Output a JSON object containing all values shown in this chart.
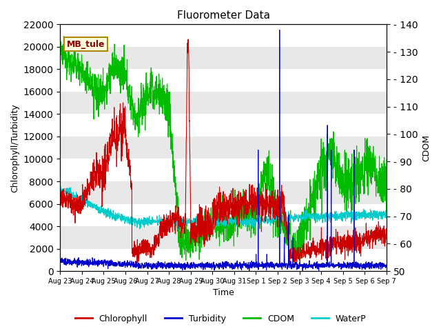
{
  "title": "Fluorometer Data",
  "xlabel": "Time",
  "ylabel_left": "Chlorophyll/Turbidity",
  "ylabel_right": "CDOM",
  "ylim_left": [
    0,
    22000
  ],
  "ylim_right": [
    50,
    140
  ],
  "yticks_left": [
    0,
    2000,
    4000,
    6000,
    8000,
    10000,
    12000,
    14000,
    16000,
    18000,
    20000,
    22000
  ],
  "yticks_right": [
    50,
    60,
    70,
    80,
    90,
    100,
    110,
    120,
    130,
    140
  ],
  "annotation_text": "MB_tule",
  "bg_color": "#e8e8e8",
  "colors": {
    "chlorophyll": "#cc0000",
    "turbidity": "#0000cc",
    "cdom": "#00bb00",
    "waterp": "#00cccc"
  },
  "legend_labels": [
    "Chlorophyll",
    "Turbidity",
    "CDOM",
    "WaterP"
  ],
  "x_tick_labels": [
    "Aug 23",
    "Aug 24",
    "Aug 25",
    "Aug 26",
    "Aug 27",
    "Aug 28",
    "Aug 29",
    "Aug 30",
    "Aug 31",
    "Sep 1",
    "Sep 2",
    "Sep 3",
    "Sep 4",
    "Sep 5",
    "Sep 6",
    "Sep 7"
  ]
}
